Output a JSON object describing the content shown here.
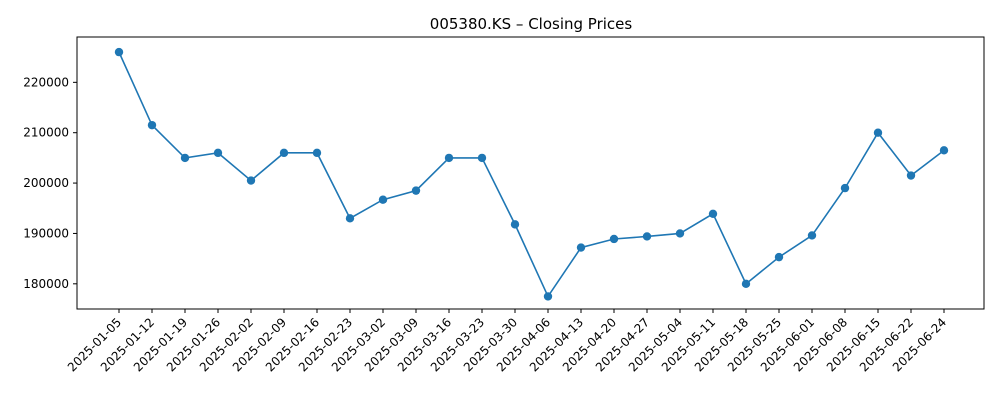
{
  "chart_data": {
    "type": "line",
    "title": "005380.KS – Closing Prices",
    "xlabel": "",
    "ylabel": "",
    "grid": false,
    "legend": "none",
    "color": "#1f77b4",
    "ylim": [
      175000,
      229000
    ],
    "yticks": [
      180000,
      190000,
      200000,
      210000,
      220000
    ],
    "x": [
      "2025-01-05",
      "2025-01-12",
      "2025-01-19",
      "2025-01-26",
      "2025-02-02",
      "2025-02-09",
      "2025-02-16",
      "2025-02-23",
      "2025-03-02",
      "2025-03-09",
      "2025-03-16",
      "2025-03-23",
      "2025-03-30",
      "2025-04-06",
      "2025-04-13",
      "2025-04-20",
      "2025-04-27",
      "2025-05-04",
      "2025-05-11",
      "2025-05-18",
      "2025-05-25",
      "2025-06-01",
      "2025-06-08",
      "2025-06-15",
      "2025-06-22",
      "2025-06-24"
    ],
    "series": [
      {
        "values": [
          226000,
          211500,
          205000,
          206000,
          200500,
          206000,
          206000,
          193000,
          196700,
          198500,
          205000,
          205000,
          191800,
          177500,
          187200,
          188900,
          189400,
          190000,
          193900,
          180000,
          185300,
          189600,
          199000,
          210000,
          201500,
          206500
        ]
      }
    ]
  }
}
